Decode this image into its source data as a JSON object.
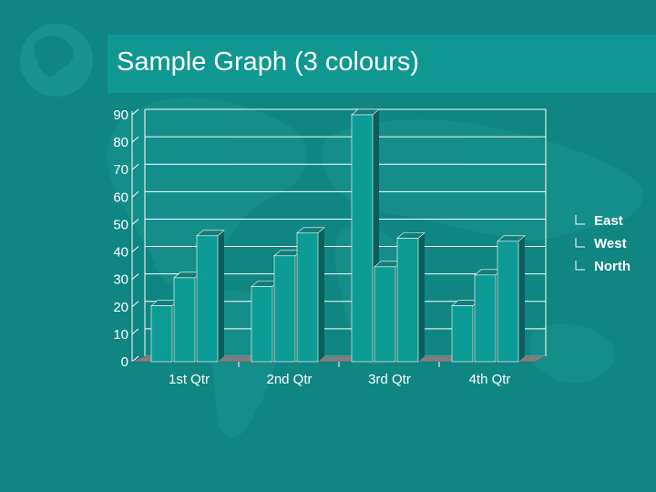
{
  "slide": {
    "title": "Sample Graph (3 colours)"
  },
  "colors": {
    "background": "#0f8682",
    "title_bar": "#0f9892",
    "bar_face": "#0c9c95",
    "bar_side": "#0a5f5b",
    "bar_top": "#137e78",
    "floor": "#7d7f82",
    "text": "#ffffff",
    "grid": "#ffffff"
  },
  "chart_data": {
    "type": "bar",
    "style": "3d-clustered-column",
    "categories": [
      "1st Qtr",
      "2nd Qtr",
      "3rd Qtr",
      "4th Qtr"
    ],
    "series": [
      {
        "name": "East",
        "values": [
          20.4,
          27.4,
          90,
          20.4
        ]
      },
      {
        "name": "West",
        "values": [
          30.6,
          38.6,
          34.6,
          31.6
        ]
      },
      {
        "name": "North",
        "values": [
          45.9,
          46.9,
          45,
          43.9
        ]
      }
    ],
    "yticks": [
      0,
      10,
      20,
      30,
      40,
      50,
      60,
      70,
      80,
      90
    ],
    "ylim": [
      0,
      90
    ],
    "grid": true,
    "legend": "right"
  }
}
